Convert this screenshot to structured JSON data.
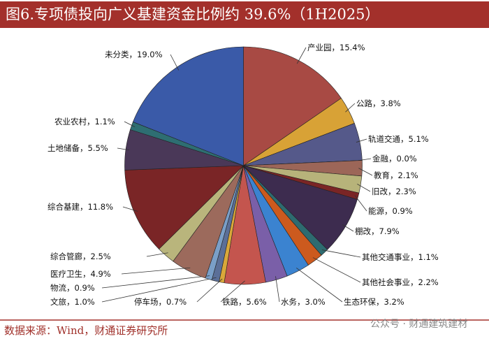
{
  "chart_data": {
    "type": "pie",
    "title": "图6.专项债投向广义基建资金比例约 39.6%（1H2025）",
    "categories": [
      "产业园",
      "公路",
      "轨道交通",
      "金融",
      "教育",
      "旧改",
      "能源",
      "棚改",
      "其他交通事业",
      "其他社会事业",
      "生态环保",
      "水务",
      "铁路",
      "停车场",
      "文旅",
      "物流",
      "医疗卫生",
      "综合管廊",
      "综合基建",
      "土地储备",
      "农业农村",
      "未分类"
    ],
    "values": [
      15.4,
      3.8,
      5.1,
      0.0,
      2.1,
      2.3,
      0.9,
      7.9,
      1.1,
      2.2,
      3.2,
      3.0,
      5.6,
      0.7,
      1.0,
      0.9,
      4.9,
      2.5,
      11.8,
      5.5,
      1.1,
      19.0
    ],
    "value_labels": [
      "，15.4%",
      "，3.8%",
      "，5.1%",
      "，0.0%",
      "，2.1%",
      "，2.3%",
      "，0.9%",
      "，7.9%",
      "，1.1%",
      "，2.2%",
      "，3.2%",
      "，3.0%",
      "，5.6%",
      "，0.7%",
      "，1.0%",
      "，0.9%",
      "，4.9%",
      "，2.5%",
      "，11.8%",
      "，5.5%",
      "，1.1%",
      "，19.0%"
    ],
    "colors": [
      "#a84a44",
      "#d8a236",
      "#55598a",
      "#8a3030",
      "#9c6658",
      "#b7b37a",
      "#7a2525",
      "#3d2c4f",
      "#2e6b70",
      "#cc5a1e",
      "#3b83d0",
      "#7a5fa8",
      "#c4554e",
      "#d9a83a",
      "#5b6f98",
      "#7a9fc8",
      "#9c6a5c",
      "#b9b57c",
      "#7a2526",
      "#4a3858",
      "#2e6e72",
      "#3a5aa8"
    ],
    "source": "数据来源：Wind，财通证券研究所",
    "watermark": "公众号 · 财通建筑建材"
  }
}
